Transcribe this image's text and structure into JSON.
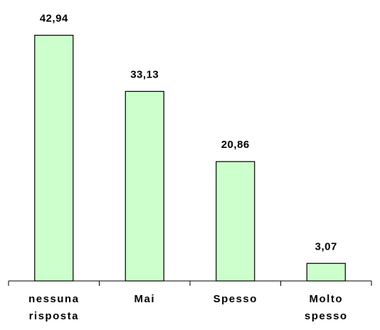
{
  "chart_data": {
    "type": "bar",
    "categories": [
      "nessuna risposta",
      "Mai",
      "Spesso",
      "Molto spesso"
    ],
    "values": [
      42.94,
      33.13,
      20.86,
      3.07
    ],
    "value_labels": [
      "42,94",
      "33,13",
      "20,86",
      "3,07"
    ],
    "color": "#ccffcc",
    "ylim": [
      0,
      45
    ]
  }
}
